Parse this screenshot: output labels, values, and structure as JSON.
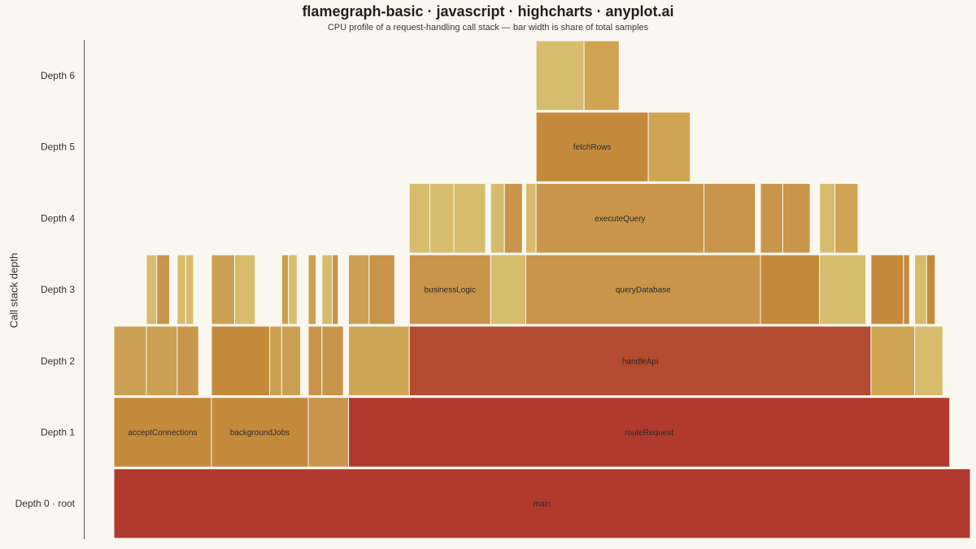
{
  "chart_data": {
    "type": "flamegraph",
    "title": "flamegraph-basic · javascript · highcharts · anyplot.ai",
    "subtitle": "CPU profile of a request-handling call stack — bar width is share of total samples",
    "ylabel": "Call stack depth",
    "categories": [
      "Depth 0 · root",
      "Depth 1",
      "Depth 2",
      "Depth 3",
      "Depth 4",
      "Depth 5",
      "Depth 6"
    ],
    "xlim": [
      0,
      1000
    ],
    "grid": false,
    "legend": "none",
    "colors": {
      "hot": "#b03a2e",
      "warm": "#c48a3c",
      "mid": "#cba052",
      "light": "#d6bc6c",
      "edge": "#faf7f0"
    },
    "frames": [
      {
        "depth": 0,
        "start": 0,
        "value": 1000,
        "name": "main",
        "color": "#b03a2e"
      },
      {
        "depth": 1,
        "start": 0,
        "value": 114,
        "name": "acceptConnections",
        "color": "#c48a3c"
      },
      {
        "depth": 1,
        "start": 114,
        "value": 113,
        "name": "backgroundJobs",
        "color": "#c48a3c"
      },
      {
        "depth": 1,
        "start": 227,
        "value": 47,
        "name": "",
        "color": "#c8954a"
      },
      {
        "depth": 1,
        "start": 274,
        "value": 702,
        "name": "routeRequest",
        "color": "#b03a2e"
      },
      {
        "depth": 2,
        "start": 0,
        "value": 38,
        "name": "",
        "color": "#cba052"
      },
      {
        "depth": 2,
        "start": 38,
        "value": 36,
        "name": "",
        "color": "#cba052"
      },
      {
        "depth": 2,
        "start": 74,
        "value": 25,
        "name": "",
        "color": "#c8954a"
      },
      {
        "depth": 2,
        "start": 114,
        "value": 68,
        "name": "",
        "color": "#c48a3c"
      },
      {
        "depth": 2,
        "start": 182,
        "value": 14,
        "name": "",
        "color": "#cba052"
      },
      {
        "depth": 2,
        "start": 196,
        "value": 22,
        "name": "",
        "color": "#cba052"
      },
      {
        "depth": 2,
        "start": 227,
        "value": 16,
        "name": "",
        "color": "#c8954a"
      },
      {
        "depth": 2,
        "start": 243,
        "value": 25,
        "name": "",
        "color": "#c8954a"
      },
      {
        "depth": 2,
        "start": 274,
        "value": 71,
        "name": "",
        "color": "#cea756"
      },
      {
        "depth": 2,
        "start": 345,
        "value": 539,
        "name": "handleApi",
        "color": "#b24b30"
      },
      {
        "depth": 2,
        "start": 884,
        "value": 51,
        "name": "",
        "color": "#cfa452"
      },
      {
        "depth": 2,
        "start": 935,
        "value": 33,
        "name": "",
        "color": "#d6bc6c"
      },
      {
        "depth": 3,
        "start": 38,
        "value": 12,
        "name": "",
        "color": "#d6bc6c"
      },
      {
        "depth": 3,
        "start": 50,
        "value": 15,
        "name": "",
        "color": "#c8954a"
      },
      {
        "depth": 3,
        "start": 74,
        "value": 10,
        "name": "",
        "color": "#d6bc6c"
      },
      {
        "depth": 3,
        "start": 84,
        "value": 9,
        "name": "",
        "color": "#d6bc6c"
      },
      {
        "depth": 3,
        "start": 114,
        "value": 27,
        "name": "",
        "color": "#cba052"
      },
      {
        "depth": 3,
        "start": 141,
        "value": 24,
        "name": "",
        "color": "#d6bc6c"
      },
      {
        "depth": 3,
        "start": 196,
        "value": 8,
        "name": "",
        "color": "#cba052"
      },
      {
        "depth": 3,
        "start": 204,
        "value": 10,
        "name": "",
        "color": "#d6bc6c"
      },
      {
        "depth": 3,
        "start": 227,
        "value": 9,
        "name": "",
        "color": "#cba052"
      },
      {
        "depth": 3,
        "start": 243,
        "value": 12,
        "name": "",
        "color": "#d6bc6c"
      },
      {
        "depth": 3,
        "start": 255,
        "value": 7,
        "name": "",
        "color": "#c8954a"
      },
      {
        "depth": 3,
        "start": 274,
        "value": 24,
        "name": "",
        "color": "#cba052"
      },
      {
        "depth": 3,
        "start": 298,
        "value": 30,
        "name": "",
        "color": "#c8954a"
      },
      {
        "depth": 3,
        "start": 345,
        "value": 95,
        "name": "businessLogic",
        "color": "#c8954a"
      },
      {
        "depth": 3,
        "start": 440,
        "value": 41,
        "name": "",
        "color": "#d6bc6c"
      },
      {
        "depth": 3,
        "start": 481,
        "value": 274,
        "name": "queryDatabase",
        "color": "#c8954a"
      },
      {
        "depth": 3,
        "start": 755,
        "value": 69,
        "name": "",
        "color": "#c48a3c"
      },
      {
        "depth": 3,
        "start": 824,
        "value": 54,
        "name": "",
        "color": "#d6bc6c"
      },
      {
        "depth": 3,
        "start": 884,
        "value": 38,
        "name": "",
        "color": "#c48a3c"
      },
      {
        "depth": 3,
        "start": 922,
        "value": 7,
        "name": "",
        "color": "#c48a3c"
      },
      {
        "depth": 3,
        "start": 935,
        "value": 14,
        "name": "",
        "color": "#d6bc6c"
      },
      {
        "depth": 3,
        "start": 949,
        "value": 10,
        "name": "",
        "color": "#c48a3c"
      },
      {
        "depth": 4,
        "start": 345,
        "value": 24,
        "name": "",
        "color": "#d6bc6c"
      },
      {
        "depth": 4,
        "start": 369,
        "value": 28,
        "name": "",
        "color": "#d6bc6c"
      },
      {
        "depth": 4,
        "start": 397,
        "value": 37,
        "name": "",
        "color": "#d6bc6c"
      },
      {
        "depth": 4,
        "start": 440,
        "value": 16,
        "name": "",
        "color": "#d6bc6c"
      },
      {
        "depth": 4,
        "start": 456,
        "value": 21,
        "name": "",
        "color": "#c8954a"
      },
      {
        "depth": 4,
        "start": 481,
        "value": 12,
        "name": "",
        "color": "#d6bc6c"
      },
      {
        "depth": 4,
        "start": 493,
        "value": 196,
        "name": "executeQuery",
        "color": "#c8954a"
      },
      {
        "depth": 4,
        "start": 689,
        "value": 60,
        "name": "",
        "color": "#c8954a"
      },
      {
        "depth": 4,
        "start": 755,
        "value": 26,
        "name": "",
        "color": "#c8954a"
      },
      {
        "depth": 4,
        "start": 781,
        "value": 32,
        "name": "",
        "color": "#c8954a"
      },
      {
        "depth": 4,
        "start": 824,
        "value": 18,
        "name": "",
        "color": "#d6bc6c"
      },
      {
        "depth": 4,
        "start": 842,
        "value": 27,
        "name": "",
        "color": "#cfa452"
      },
      {
        "depth": 5,
        "start": 493,
        "value": 131,
        "name": "fetchRows",
        "color": "#c48a3c"
      },
      {
        "depth": 5,
        "start": 624,
        "value": 49,
        "name": "",
        "color": "#cfa452"
      },
      {
        "depth": 6,
        "start": 493,
        "value": 56,
        "name": "",
        "color": "#d6bc6c"
      },
      {
        "depth": 6,
        "start": 549,
        "value": 41,
        "name": "",
        "color": "#cfa452"
      }
    ]
  }
}
